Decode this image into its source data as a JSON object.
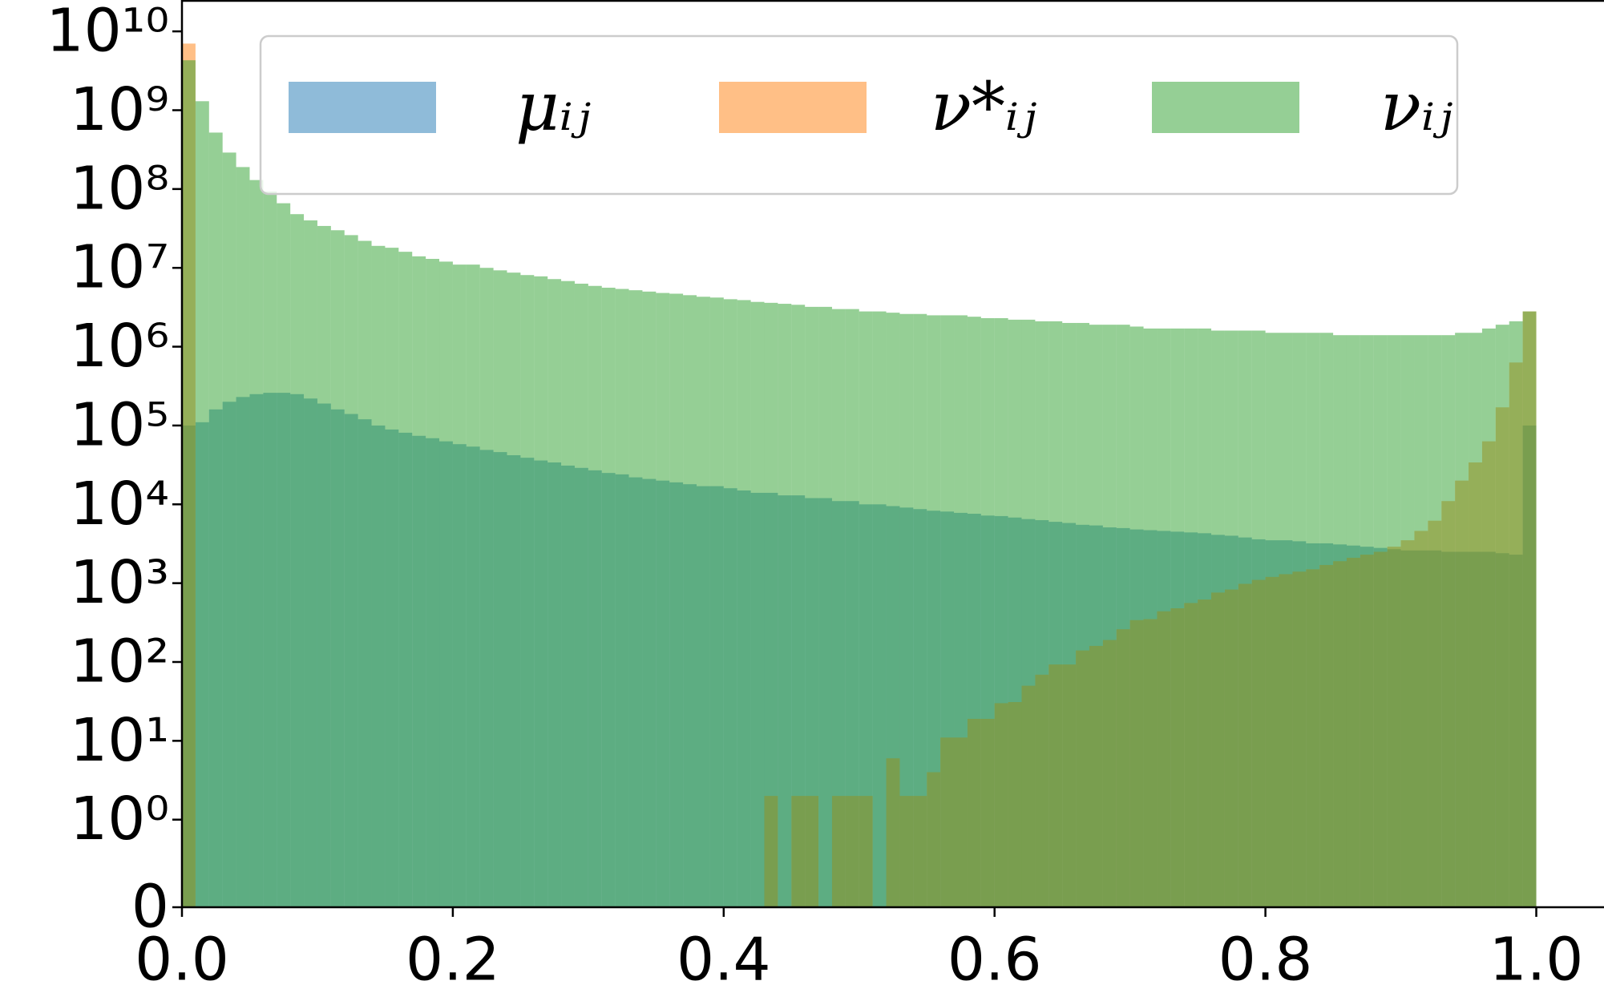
{
  "chart_data": {
    "type": "histogram",
    "bins": [
      0,
      0.01,
      0.02,
      0.03,
      0.04,
      0.05,
      0.06,
      0.07,
      0.08,
      0.09,
      0.1,
      0.11,
      0.12,
      0.13,
      0.14,
      0.15,
      0.16,
      0.17,
      0.18,
      0.19,
      0.2,
      0.21,
      0.22,
      0.23,
      0.24,
      0.25,
      0.26,
      0.27,
      0.28,
      0.29,
      0.3,
      0.31,
      0.32,
      0.33,
      0.34,
      0.35,
      0.36,
      0.37,
      0.38,
      0.39,
      0.4,
      0.41,
      0.42,
      0.43,
      0.44,
      0.45,
      0.46,
      0.47,
      0.48,
      0.49,
      0.5,
      0.51,
      0.52,
      0.53,
      0.54,
      0.55,
      0.56,
      0.57,
      0.58,
      0.59,
      0.6,
      0.61,
      0.62,
      0.63,
      0.64,
      0.65,
      0.66,
      0.67,
      0.68,
      0.69,
      0.7,
      0.71,
      0.72,
      0.73,
      0.74,
      0.75,
      0.76,
      0.77,
      0.78,
      0.79,
      0.8,
      0.81,
      0.82,
      0.83,
      0.84,
      0.85,
      0.86,
      0.87,
      0.88,
      0.89,
      0.9,
      0.91,
      0.92,
      0.93,
      0.94,
      0.95,
      0.96,
      0.97,
      0.98,
      0.99,
      1
    ],
    "series": [
      {
        "name": "μᵢⱼ",
        "color": "#1f77b4",
        "alpha": 0.5,
        "values": [
          100000.0,
          110000.0,
          160000.0,
          200000.0,
          230000.0,
          250000.0,
          260000.0,
          260000.0,
          250000.0,
          220000.0,
          190000.0,
          160000.0,
          140000.0,
          120000.0,
          100000.0,
          89000.0,
          81000.0,
          74000.0,
          69000.0,
          63000.0,
          58000.0,
          54000.0,
          49000.0,
          46000.0,
          42000.0,
          39000.0,
          36000.0,
          34000.0,
          31000.0,
          29000.0,
          27000.0,
          25000.0,
          24000.0,
          22000.0,
          21000.0,
          20000.0,
          19000.0,
          18000.0,
          17000.0,
          17000.0,
          16000.0,
          15000.0,
          14000.0,
          14000.0,
          13000.0,
          13000.0,
          12000.0,
          12000.0,
          11000.0,
          11000.0,
          10000.0,
          10000.0,
          9500,
          9100,
          8700,
          8300,
          8100,
          7800,
          7600,
          7200,
          7100,
          6800,
          6500,
          6300,
          6000,
          5800,
          5500,
          5400,
          5100,
          5000,
          4800,
          4700,
          4600,
          4500,
          4400,
          4300,
          4100,
          4000,
          3800,
          3600,
          3500,
          3500,
          3400,
          3200,
          3200,
          3100,
          3000,
          2900,
          2800,
          2700,
          2600,
          2600,
          2600,
          2500,
          2500,
          2500,
          2500,
          2400,
          2300,
          100000.0
        ]
      },
      {
        "name": "ν*ᵢⱼ",
        "color": "#ff7f0e",
        "alpha": 0.5,
        "values": [
          7000000000.0,
          0,
          0,
          0,
          0,
          0,
          0,
          0,
          0,
          0,
          0,
          0,
          0,
          0,
          0,
          0,
          0,
          0,
          0,
          0,
          0,
          0,
          0,
          0,
          0,
          0,
          0,
          0,
          0,
          0,
          0,
          0,
          0,
          0,
          0,
          0,
          0,
          0,
          0,
          0,
          0,
          0,
          0,
          2,
          0,
          2,
          2,
          0,
          2,
          2,
          2,
          0,
          6,
          2,
          2,
          4,
          11,
          11,
          19,
          19,
          30,
          31,
          50,
          69,
          93,
          93,
          140,
          160,
          190,
          260,
          340,
          350,
          440,
          480,
          560,
          620,
          760,
          830,
          980,
          1100,
          1200,
          1300,
          1400,
          1500,
          1700,
          1900,
          2100,
          2300,
          2500,
          2900,
          3500,
          4600,
          6200,
          11000.0,
          20000.0,
          34000.0,
          63000.0,
          170000.0,
          630000.0,
          2800000.0
        ]
      },
      {
        "name": "νᵢⱼ",
        "color": "#2ca02c",
        "alpha": 0.5,
        "values": [
          4300000000.0,
          1300000000.0,
          520000000.0,
          290000000.0,
          190000000.0,
          130000000.0,
          93000000.0,
          66000000.0,
          48000000.0,
          40000000.0,
          34000000.0,
          30000000.0,
          26000000.0,
          22000000.0,
          19000000.0,
          18000000.0,
          16000000.0,
          14000000.0,
          13000000.0,
          12000000.0,
          11000000.0,
          11000000.0,
          10000000.0,
          9300000.0,
          8700000.0,
          8100000.0,
          7800000.0,
          7200000.0,
          6800000.0,
          6300000.0,
          5900000.0,
          5600000.0,
          5400000.0,
          5200000.0,
          5000000.0,
          4800000.0,
          4700000.0,
          4500000.0,
          4300000.0,
          4200000.0,
          4000000.0,
          3900000.0,
          3700000.0,
          3600000.0,
          3500000.0,
          3400000.0,
          3200000.0,
          3200000.0,
          3000000.0,
          3000000.0,
          2800000.0,
          2800000.0,
          2700000.0,
          2600000.0,
          2600000.0,
          2500000.0,
          2500000.0,
          2500000.0,
          2400000.0,
          2300000.0,
          2300000.0,
          2200000.0,
          2200000.0,
          2100000.0,
          2100000.0,
          2000000.0,
          2000000.0,
          1900000.0,
          1900000.0,
          1900000.0,
          1800000.0,
          1700000.0,
          1700000.0,
          1700000.0,
          1700000.0,
          1700000.0,
          1600000.0,
          1600000.0,
          1600000.0,
          1600000.0,
          1500000.0,
          1500000.0,
          1500000.0,
          1500000.0,
          1500000.0,
          1400000.0,
          1400000.0,
          1400000.0,
          1400000.0,
          1400000.0,
          1400000.0,
          1400000.0,
          1400000.0,
          1400000.0,
          1500000.0,
          1500000.0,
          1700000.0,
          1900000.0,
          2100000.0,
          2800000.0
        ]
      }
    ],
    "xlim": [
      0,
      1.05
    ],
    "xticks": [
      {
        "value": 0,
        "label": "0.0"
      },
      0.2,
      0.4,
      0.6,
      0.8,
      {
        "value": 1,
        "label": "1.0"
      }
    ],
    "ylim": [
      0,
      25000000000.0
    ],
    "yscale": "symlog",
    "linthresh": 1,
    "yticks": [
      0,
      {
        "value": 1,
        "label": "10⁰"
      },
      {
        "value": 10,
        "label": "10¹"
      },
      {
        "value": 100,
        "label": "10²"
      },
      {
        "value": 1000,
        "label": "10³"
      },
      {
        "value": 10000,
        "label": "10⁴"
      },
      {
        "value": 100000,
        "label": "10⁵"
      },
      {
        "value": 1000000,
        "label": "10⁶"
      },
      {
        "value": 10000000,
        "label": "10⁷"
      },
      {
        "value": 100000000,
        "label": "10⁸"
      },
      {
        "value": 1000000000,
        "label": "10⁹"
      },
      {
        "value": 10000000000,
        "label": "10¹⁰"
      }
    ],
    "legend": "top"
  }
}
